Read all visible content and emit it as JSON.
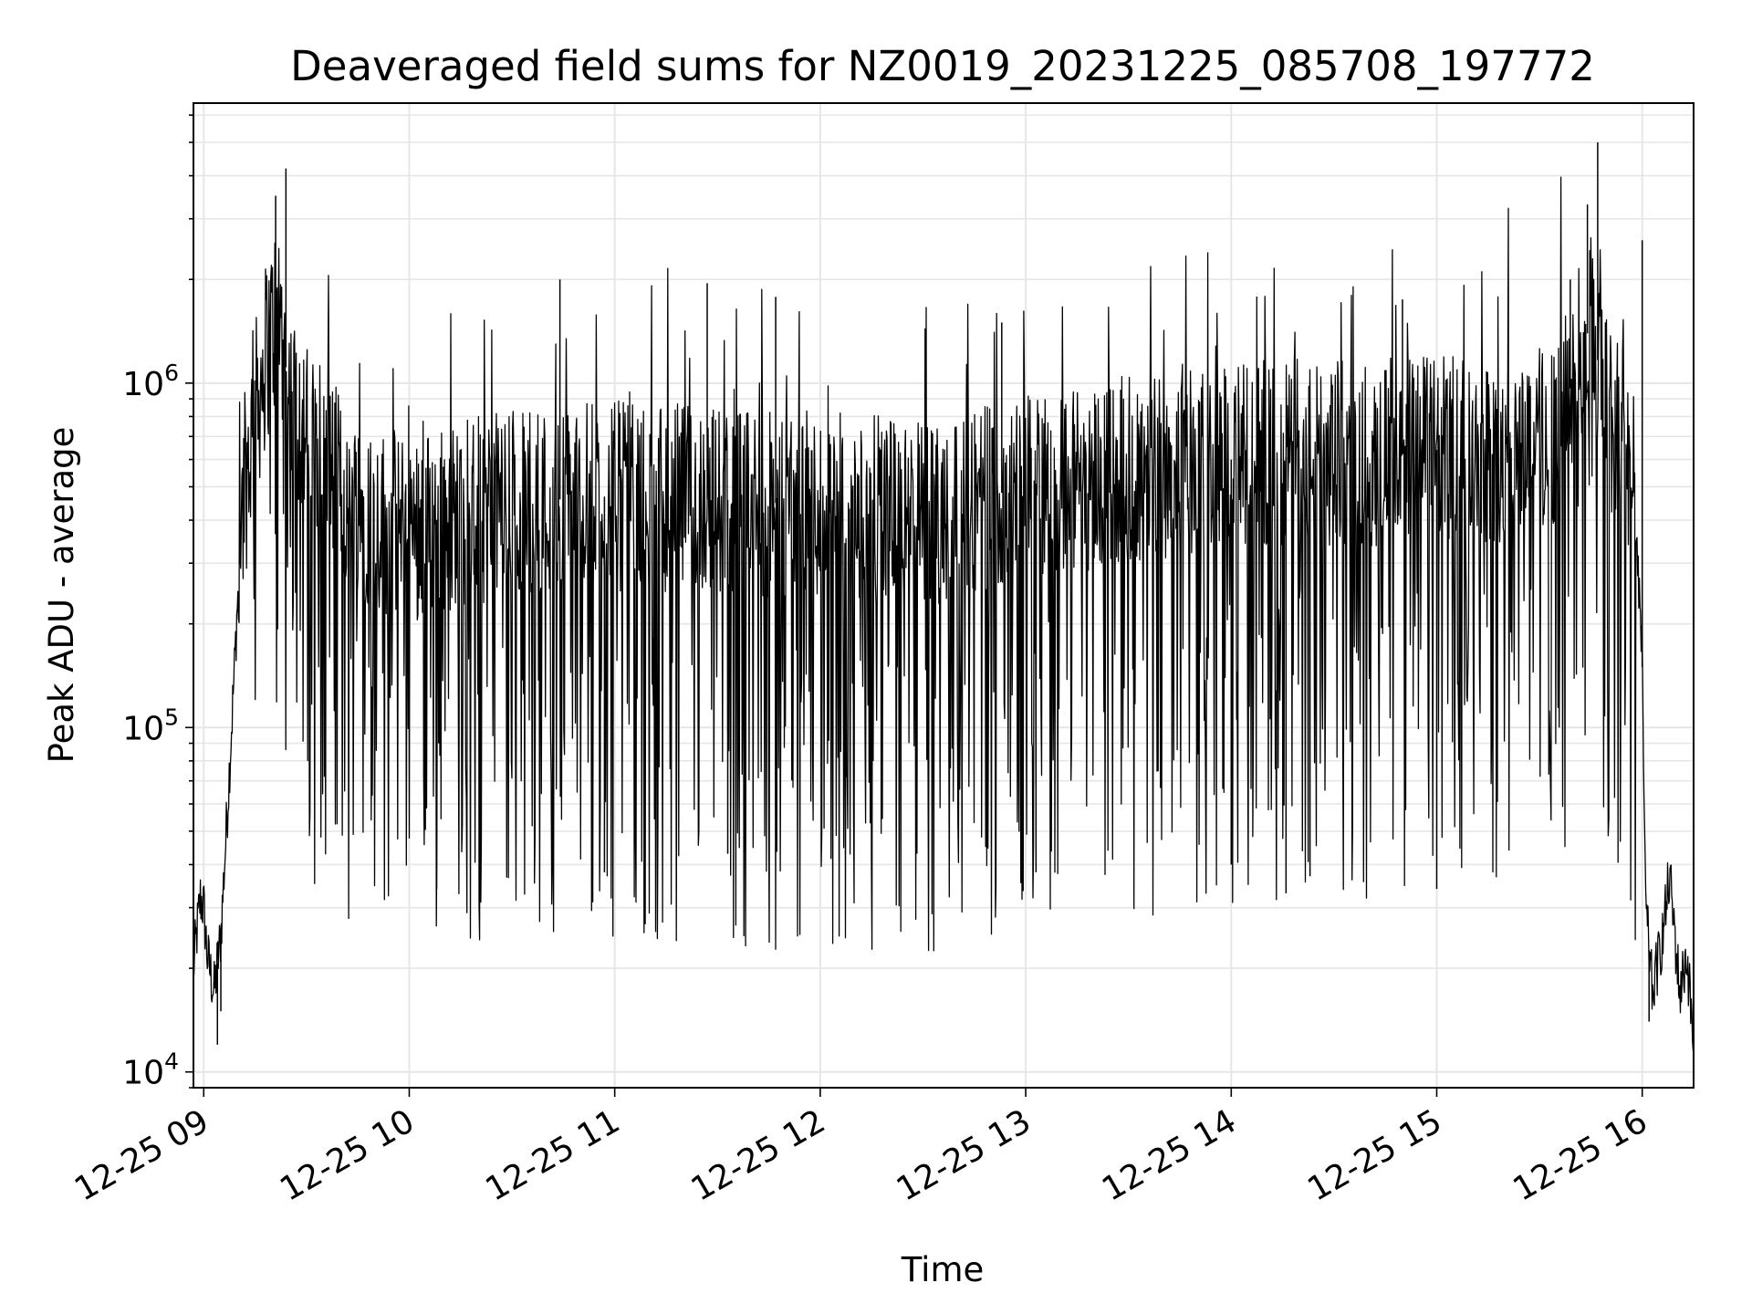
{
  "chart_data": {
    "type": "line",
    "title": "Deaveraged field sums for NZ0019_20231225_085708_197772",
    "xlabel": "Time",
    "ylabel": "Peak ADU - average",
    "yscale": "log",
    "ylim": [
      9000,
      6500000
    ],
    "xlim": [
      "12-25 08:57",
      "12-25 16:15"
    ],
    "grid": true,
    "x_tick_labels": [
      "12-25 09",
      "12-25 10",
      "12-25 11",
      "12-25 12",
      "12-25 13",
      "12-25 14",
      "12-25 15",
      "12-25 16"
    ],
    "y_tick_labels": [
      {
        "base": "10",
        "exp": "4",
        "value": 10000
      },
      {
        "base": "10",
        "exp": "5",
        "value": 100000
      },
      {
        "base": "10",
        "exp": "6",
        "value": 1000000
      }
    ],
    "series": [
      {
        "color": "#000000",
        "points": [
          [
            "12-25 08:57",
            20000
          ],
          [
            "12-25 08:59",
            32000
          ],
          [
            "12-25 09:00",
            30000
          ],
          [
            "12-25 09:01",
            22000
          ],
          [
            "12-25 09:03",
            17000
          ],
          [
            "12-25 09:05",
            25000
          ],
          [
            "12-25 09:07",
            60000
          ],
          [
            "12-25 09:09",
            150000
          ],
          [
            "12-25 09:11",
            420000
          ],
          [
            "12-25 09:14",
            700000
          ],
          [
            "12-25 09:18",
            1200000
          ],
          [
            "12-25 09:22",
            1700000
          ],
          [
            "12-25 09:25",
            900000
          ],
          [
            "12-25 09:30",
            700000
          ],
          [
            "12-25 09:40",
            500000
          ],
          [
            "12-25 09:50",
            400000
          ],
          [
            "12-25 10:00",
            380000
          ],
          [
            "12-25 10:15",
            420000
          ],
          [
            "12-25 10:30",
            450000
          ],
          [
            "12-25 11:00",
            470000
          ],
          [
            "12-25 11:30",
            460000
          ],
          [
            "12-25 12:00",
            440000
          ],
          [
            "12-25 12:30",
            420000
          ],
          [
            "12-25 13:00",
            500000
          ],
          [
            "12-25 13:30",
            560000
          ],
          [
            "12-25 14:00",
            600000
          ],
          [
            "12-25 14:30",
            620000
          ],
          [
            "12-25 15:00",
            640000
          ],
          [
            "12-25 15:20",
            650000
          ],
          [
            "12-25 15:35",
            720000
          ],
          [
            "12-25 15:45",
            1500000
          ],
          [
            "12-25 15:50",
            800000
          ],
          [
            "12-25 15:55",
            700000
          ],
          [
            "12-25 15:58",
            450000
          ],
          [
            "12-25 16:00",
            150000
          ],
          [
            "12-25 16:01",
            30000
          ],
          [
            "12-25 16:03",
            17000
          ],
          [
            "12-25 16:06",
            25000
          ],
          [
            "12-25 16:08",
            37000
          ],
          [
            "12-25 16:11",
            17000
          ],
          [
            "12-25 16:13",
            22000
          ],
          [
            "12-25 16:15",
            12000
          ]
        ],
        "spikes": [
          [
            "12-25 09:24",
            4200000
          ],
          [
            "12-25 09:21",
            3500000
          ],
          [
            "12-25 15:47",
            5000000
          ],
          [
            "12-25 15:44",
            3300000
          ],
          [
            "12-25 10:44",
            2000000
          ],
          [
            "12-25 11:27",
            1950000
          ],
          [
            "12-25 11:47",
            1780000
          ],
          [
            "12-25 16:00",
            2600000
          ],
          [
            "12-25 15:39",
            2000000
          ],
          [
            "12-25 14:50",
            1750000
          ],
          [
            "12-25 12:53",
            1500000
          ],
          [
            "12-25 09:04",
            12000
          ],
          [
            "12-25 09:05",
            15000
          ],
          [
            "12-25 10:08",
            34000
          ],
          [
            "12-25 10:57",
            38000
          ],
          [
            "12-25 11:33",
            43000
          ],
          [
            "12-25 13:03",
            38000
          ],
          [
            "12-25 14:16",
            33000
          ],
          [
            "12-25 15:00",
            34000
          ],
          [
            "12-25 14:23",
            37000
          ],
          [
            "12-25 14:00",
            40000
          ],
          [
            "12-25 16:02",
            14000
          ]
        ]
      }
    ]
  }
}
